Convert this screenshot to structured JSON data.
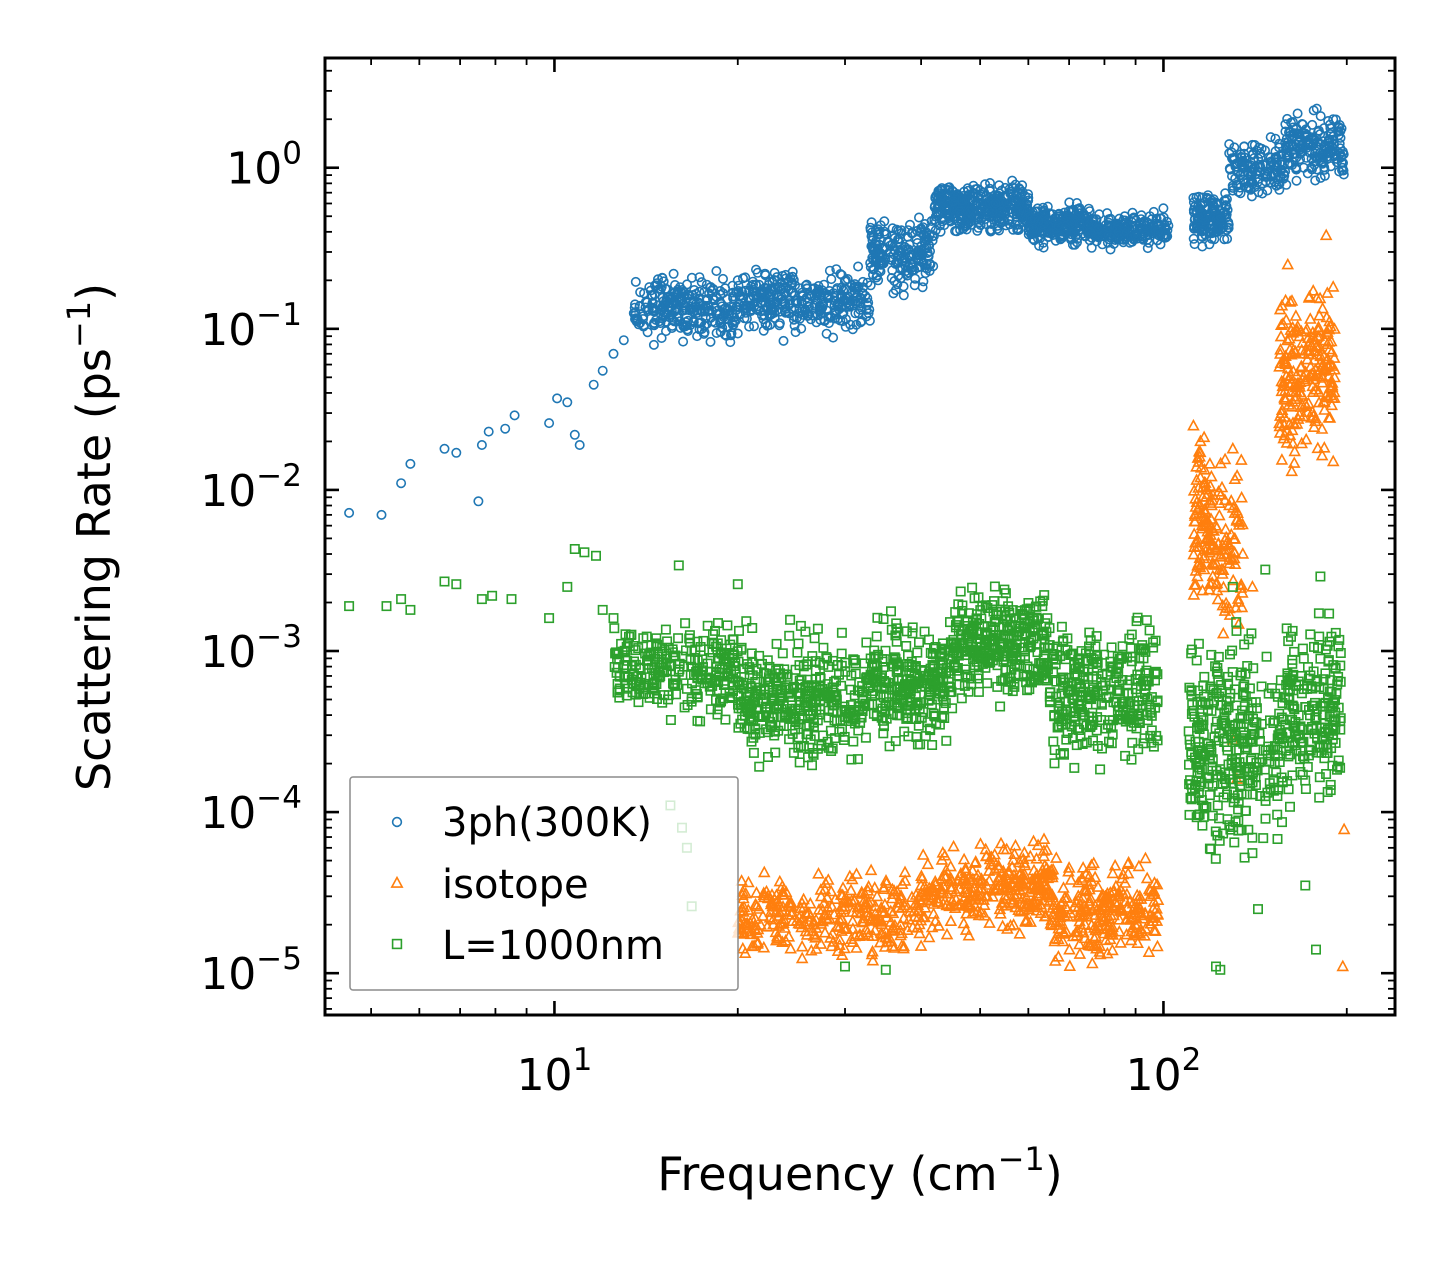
{
  "chart_data": {
    "type": "scatter",
    "xscale": "log",
    "yscale": "log",
    "xlim": [
      4.2,
      240
    ],
    "ylim": [
      5.5e-06,
      4.8
    ],
    "xlabel": "Frequency (cm",
    "xlabel_exp": "−1",
    "xlabel_close": ")",
    "ylabel": "Scattering Rate (ps",
    "ylabel_exp": "−1",
    "ylabel_close": ")",
    "x_ticks": [
      {
        "value": 10,
        "base": "10",
        "exp": "1"
      },
      {
        "value": 100,
        "base": "10",
        "exp": "2"
      }
    ],
    "y_ticks": [
      {
        "value": 1,
        "base": "10",
        "exp": "0"
      },
      {
        "value": 0.1,
        "base": "10",
        "exp": "−1"
      },
      {
        "value": 0.01,
        "base": "10",
        "exp": "−2"
      },
      {
        "value": 0.001,
        "base": "10",
        "exp": "−3"
      },
      {
        "value": 0.0001,
        "base": "10",
        "exp": "−4"
      },
      {
        "value": 1e-05,
        "base": "10",
        "exp": "−5"
      }
    ],
    "legend_position": "lower-left",
    "series": [
      {
        "name": "3ph(300K)",
        "marker": "circle",
        "color": "#1f77b4",
        "points": [
          [
            4.6,
            0.0072
          ],
          [
            5.2,
            0.007
          ],
          [
            5.6,
            0.011
          ],
          [
            5.8,
            0.0145
          ],
          [
            6.6,
            0.018
          ],
          [
            6.9,
            0.017
          ],
          [
            7.5,
            0.0085
          ],
          [
            7.6,
            0.019
          ],
          [
            7.8,
            0.023
          ],
          [
            8.3,
            0.024
          ],
          [
            8.6,
            0.029
          ],
          [
            9.8,
            0.026
          ],
          [
            10.1,
            0.037
          ],
          [
            10.5,
            0.035
          ],
          [
            10.8,
            0.022
          ],
          [
            11,
            0.019
          ],
          [
            11.6,
            0.045
          ],
          [
            12,
            0.055
          ],
          [
            12.5,
            0.07
          ],
          [
            13,
            0.085
          ],
          [
            14,
            0.12
          ],
          [
            16,
            0.15
          ],
          [
            18,
            0.18
          ],
          [
            20,
            0.2
          ],
          [
            22,
            0.17
          ],
          [
            25,
            0.15
          ],
          [
            28,
            0.13
          ],
          [
            31,
            0.15
          ],
          [
            34,
            0.2
          ],
          [
            37,
            0.3
          ],
          [
            40,
            0.42
          ],
          [
            45,
            0.6
          ],
          [
            50,
            0.72
          ],
          [
            55,
            0.75
          ],
          [
            60,
            0.65
          ],
          [
            65,
            0.52
          ],
          [
            70,
            0.45
          ],
          [
            75,
            0.4
          ],
          [
            80,
            0.38
          ],
          [
            88,
            0.42
          ],
          [
            95,
            0.5
          ],
          [
            100,
            0.56
          ],
          [
            112,
            0.65
          ],
          [
            118,
            0.55
          ],
          [
            122,
            0.4
          ],
          [
            125,
            0.45
          ],
          [
            130,
            0.75
          ],
          [
            140,
            1.2
          ],
          [
            150,
            1.55
          ],
          [
            160,
            1.05
          ],
          [
            170,
            1.0
          ],
          [
            180,
            1.7
          ],
          [
            190,
            2.0
          ]
        ],
        "clusters": [
          {
            "x": [
              13.5,
              20
            ],
            "y": [
              0.07,
              0.25
            ],
            "n": 260
          },
          {
            "x": [
              20,
              33
            ],
            "y": [
              0.08,
              0.28
            ],
            "n": 330
          },
          {
            "x": [
              33,
              42
            ],
            "y": [
              0.15,
              0.6
            ],
            "n": 200
          },
          {
            "x": [
              42,
              60
            ],
            "y": [
              0.35,
              0.9
            ],
            "n": 380
          },
          {
            "x": [
              60,
              78
            ],
            "y": [
              0.3,
              0.65
            ],
            "n": 250
          },
          {
            "x": [
              78,
              102
            ],
            "y": [
              0.3,
              0.55
            ],
            "n": 180
          },
          {
            "x": [
              112,
              128
            ],
            "y": [
              0.3,
              0.8
            ],
            "n": 140
          },
          {
            "x": [
              128,
              158
            ],
            "y": [
              0.6,
              1.6
            ],
            "n": 140
          },
          {
            "x": [
              158,
              198
            ],
            "y": [
              0.7,
              2.5
            ],
            "n": 180
          }
        ]
      },
      {
        "name": "isotope",
        "marker": "triangle",
        "color": "#ff7f0e",
        "points": [
          [
            112,
            0.025
          ],
          [
            115,
            0.02
          ],
          [
            120,
            0.008
          ],
          [
            125,
            0.003
          ],
          [
            130,
            0.018
          ],
          [
            135,
            0.004
          ],
          [
            140,
            0.0025
          ],
          [
            160,
            0.25
          ],
          [
            165,
            0.12
          ],
          [
            170,
            0.05
          ],
          [
            180,
            0.09
          ],
          [
            185,
            0.38
          ],
          [
            190,
            0.015
          ],
          [
            198,
            7.8e-05
          ],
          [
            197,
            1.1e-05
          ],
          [
            130,
            0.00028
          ],
          [
            132,
            0.00016
          ],
          [
            70,
            4.5e-05
          ],
          [
            40,
            3.5e-05
          ]
        ],
        "clusters": [
          {
            "x": [
              20,
              40
            ],
            "y": [
              1e-05,
              5e-05
            ],
            "n": 330
          },
          {
            "x": [
              40,
              50
            ],
            "y": [
              1.5e-05,
              7e-05
            ],
            "n": 120
          },
          {
            "x": [
              50,
              66
            ],
            "y": [
              1.5e-05,
              8e-05
            ],
            "n": 200
          },
          {
            "x": [
              66,
              98
            ],
            "y": [
              1e-05,
              6e-05
            ],
            "n": 250
          },
          {
            "x": [
              112,
              120
            ],
            "y": [
              0.0012,
              0.028
            ],
            "n": 90
          },
          {
            "x": [
              120,
              135
            ],
            "y": [
              0.001,
              0.02
            ],
            "n": 90
          },
          {
            "x": [
              155,
              172
            ],
            "y": [
              0.01,
              0.28
            ],
            "n": 110
          },
          {
            "x": [
              172,
              192
            ],
            "y": [
              0.012,
              0.3
            ],
            "n": 110
          }
        ]
      },
      {
        "name": "L=1000nm",
        "marker": "square",
        "color": "#2ca02c",
        "points": [
          [
            4.6,
            0.0019
          ],
          [
            5.3,
            0.0019
          ],
          [
            5.6,
            0.0021
          ],
          [
            5.8,
            0.0018
          ],
          [
            6.6,
            0.0027
          ],
          [
            6.9,
            0.0026
          ],
          [
            7.6,
            0.0021
          ],
          [
            7.9,
            0.0022
          ],
          [
            8.5,
            0.0021
          ],
          [
            9.8,
            0.0016
          ],
          [
            10.5,
            0.0025
          ],
          [
            10.8,
            0.0043
          ],
          [
            11.2,
            0.0041
          ],
          [
            11.7,
            0.0039
          ],
          [
            12,
            0.0018
          ],
          [
            12.5,
            0.0016
          ],
          [
            16,
            0.0034
          ],
          [
            20,
            0.0026
          ],
          [
            15.5,
            0.00011
          ],
          [
            16.2,
            8e-05
          ],
          [
            16.5,
            6e-05
          ],
          [
            16.8,
            2.6e-05
          ],
          [
            30,
            1.1e-05
          ],
          [
            35,
            1.05e-05
          ],
          [
            122,
            1.1e-05
          ],
          [
            124,
            1.05e-05
          ],
          [
            143,
            2.5e-05
          ],
          [
            171,
            3.5e-05
          ],
          [
            178,
            1.4e-05
          ],
          [
            147,
            0.0032
          ],
          [
            181,
            0.0029
          ],
          [
            130,
            0.0025
          ]
        ],
        "clusters": [
          {
            "x": [
              12.5,
              20
            ],
            "y": [
              0.0003,
              0.0018
            ],
            "n": 260
          },
          {
            "x": [
              20,
              33
            ],
            "y": [
              0.00015,
              0.0018
            ],
            "n": 380
          },
          {
            "x": [
              33,
              45
            ],
            "y": [
              0.0002,
              0.002
            ],
            "n": 260
          },
          {
            "x": [
              45,
              65
            ],
            "y": [
              0.0004,
              0.003
            ],
            "n": 330
          },
          {
            "x": [
              65,
              98
            ],
            "y": [
              0.00015,
              0.002
            ],
            "n": 320
          },
          {
            "x": [
              110,
              140
            ],
            "y": [
              3e-05,
              0.002
            ],
            "n": 260
          },
          {
            "x": [
              140,
              158
            ],
            "y": [
              5e-05,
              0.0012
            ],
            "n": 80
          },
          {
            "x": [
              158,
              196
            ],
            "y": [
              8e-05,
              0.0025
            ],
            "n": 200
          }
        ]
      }
    ]
  }
}
